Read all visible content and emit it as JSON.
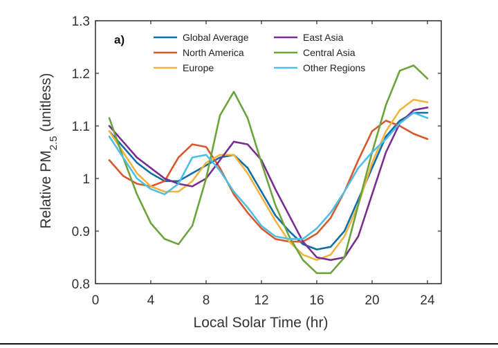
{
  "chart_data": {
    "type": "line",
    "panel_label": "a)",
    "xlabel": "Local Solar Time (hr)",
    "ylabel_main": "Relative PM",
    "ylabel_sub": "2.5",
    "ylabel_suffix": " (unitless)",
    "xlim": [
      0,
      25
    ],
    "ylim": [
      0.8,
      1.3
    ],
    "xticks": [
      0,
      4,
      8,
      12,
      16,
      20,
      24
    ],
    "yticks": [
      0.8,
      0.9,
      1,
      1.1,
      1.2,
      1.3
    ],
    "ytick_labels": [
      "0.8",
      "0.9",
      "1",
      "1.1",
      "1.2",
      "1.3"
    ],
    "grid": false,
    "legend_position": "top-center",
    "x": [
      1,
      2,
      3,
      4,
      5,
      6,
      7,
      8,
      9,
      10,
      11,
      12,
      13,
      14,
      15,
      16,
      17,
      18,
      19,
      20,
      21,
      22,
      23,
      24
    ],
    "series": [
      {
        "name": "Global Average",
        "color": "#0e6fa8",
        "values": [
          1.09,
          1.06,
          1.03,
          1.01,
          0.995,
          0.995,
          1.01,
          1.025,
          1.04,
          1.045,
          1.02,
          0.975,
          0.93,
          0.9,
          0.875,
          0.865,
          0.87,
          0.9,
          0.96,
          1.02,
          1.08,
          1.11,
          1.125,
          1.125
        ]
      },
      {
        "name": "North America",
        "color": "#d9572a",
        "values": [
          1.035,
          1.005,
          0.99,
          0.985,
          0.995,
          1.04,
          1.065,
          1.06,
          1.02,
          0.97,
          0.935,
          0.905,
          0.885,
          0.88,
          0.88,
          0.895,
          0.925,
          0.975,
          1.035,
          1.09,
          1.11,
          1.1,
          1.085,
          1.075
        ]
      },
      {
        "name": "Europe",
        "color": "#f0b43c",
        "values": [
          1.09,
          1.05,
          1.01,
          0.985,
          0.975,
          0.975,
          0.995,
          1.03,
          1.045,
          1.045,
          1.01,
          0.965,
          0.92,
          0.88,
          0.855,
          0.845,
          0.855,
          0.89,
          0.95,
          1.03,
          1.09,
          1.13,
          1.15,
          1.145
        ]
      },
      {
        "name": "East Asia",
        "color": "#7b2d8f",
        "values": [
          1.1,
          1.07,
          1.04,
          1.02,
          1.0,
          0.99,
          0.985,
          1.0,
          1.035,
          1.07,
          1.065,
          1.035,
          0.98,
          0.93,
          0.88,
          0.85,
          0.845,
          0.85,
          0.89,
          0.97,
          1.05,
          1.105,
          1.13,
          1.135
        ]
      },
      {
        "name": "Central Asia",
        "color": "#6aa43a",
        "values": [
          1.115,
          1.04,
          0.97,
          0.915,
          0.885,
          0.875,
          0.91,
          1.0,
          1.12,
          1.165,
          1.115,
          1.03,
          0.95,
          0.89,
          0.845,
          0.82,
          0.82,
          0.85,
          0.95,
          1.05,
          1.14,
          1.205,
          1.215,
          1.19
        ]
      },
      {
        "name": "Other Regions",
        "color": "#4dbfe6",
        "values": [
          1.08,
          1.04,
          1.0,
          0.98,
          0.97,
          0.99,
          1.04,
          1.045,
          1.015,
          0.975,
          0.945,
          0.91,
          0.89,
          0.885,
          0.885,
          0.905,
          0.935,
          0.975,
          1.02,
          1.05,
          1.075,
          1.105,
          1.125,
          1.115
        ]
      }
    ]
  }
}
